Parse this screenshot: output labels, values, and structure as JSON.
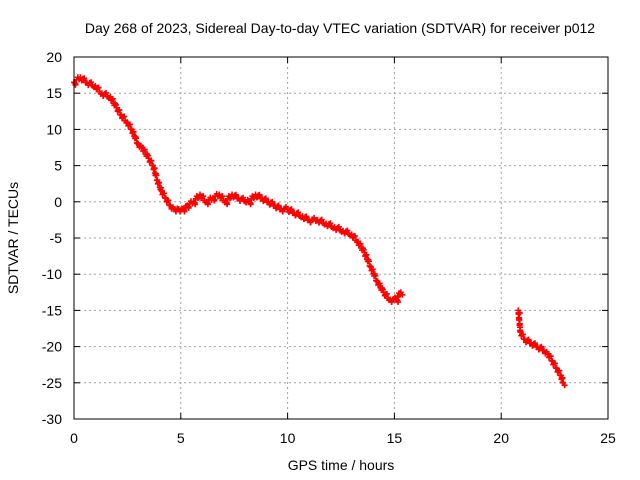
{
  "chart_data": {
    "type": "scatter",
    "title": "Day 268 of 2023, Sidereal Day-to-day VTEC variation (SDTVAR) for receiver p012",
    "xlabel": "GPS time / hours",
    "ylabel": "SDTVAR / TECUs",
    "xlim": [
      0,
      25
    ],
    "ylim": [
      -30,
      20
    ],
    "xticks": [
      0,
      5,
      10,
      15,
      20,
      25
    ],
    "yticks": [
      -30,
      -25,
      -20,
      -15,
      -10,
      -5,
      0,
      5,
      10,
      15,
      20
    ],
    "xtick_labels": [
      "0",
      "5",
      "10",
      "15",
      "20",
      "25"
    ],
    "ytick_labels": [
      "-30",
      "-25",
      "-20",
      "-15",
      "-10",
      "-5",
      "0",
      "5",
      "10",
      "15",
      "20"
    ],
    "grid": true,
    "marker": "+",
    "color": "#ff0000",
    "series": [
      {
        "name": "SDTVAR",
        "x": [
          0.0,
          0.3,
          0.6,
          1.0,
          1.3,
          1.7,
          2.0,
          2.2,
          2.5,
          2.7,
          3.0,
          3.2,
          3.5,
          3.7,
          3.9,
          4.1,
          4.3,
          4.5,
          4.7,
          4.9,
          5.1,
          5.3,
          5.6,
          5.9,
          6.2,
          6.5,
          6.8,
          7.1,
          7.4,
          7.7,
          8.2,
          8.5,
          8.8,
          9.1,
          9.4,
          9.7,
          10.0,
          10.3,
          10.7,
          11.0,
          11.4,
          11.8,
          12.2,
          12.6,
          13.0,
          13.3,
          13.6,
          13.9,
          14.2,
          14.5,
          14.8,
          15.1,
          15.3,
          20.8,
          20.9,
          21.1,
          21.4,
          21.7,
          22.0,
          22.2,
          22.4,
          22.6,
          22.8,
          22.9
        ],
        "y": [
          16.5,
          17.2,
          16.5,
          16.0,
          15.0,
          14.5,
          13.0,
          12.0,
          11.0,
          10.0,
          8.0,
          7.5,
          6.0,
          5.0,
          3.0,
          1.5,
          0.5,
          -0.5,
          -1.0,
          -1.0,
          -1.0,
          -0.5,
          0.0,
          1.0,
          0.0,
          0.5,
          1.0,
          0.0,
          1.0,
          0.5,
          0.0,
          1.0,
          0.5,
          0.0,
          -0.5,
          -1.0,
          -1.0,
          -1.5,
          -2.0,
          -2.5,
          -2.5,
          -3.0,
          -3.5,
          -4.0,
          -4.5,
          -5.5,
          -7.0,
          -9.0,
          -11.0,
          -12.5,
          -13.5,
          -13.5,
          -12.5,
          -15.0,
          -18.0,
          -19.0,
          -19.5,
          -20.0,
          -20.5,
          -21.0,
          -22.0,
          -23.0,
          -24.0,
          -25.0
        ]
      }
    ]
  }
}
